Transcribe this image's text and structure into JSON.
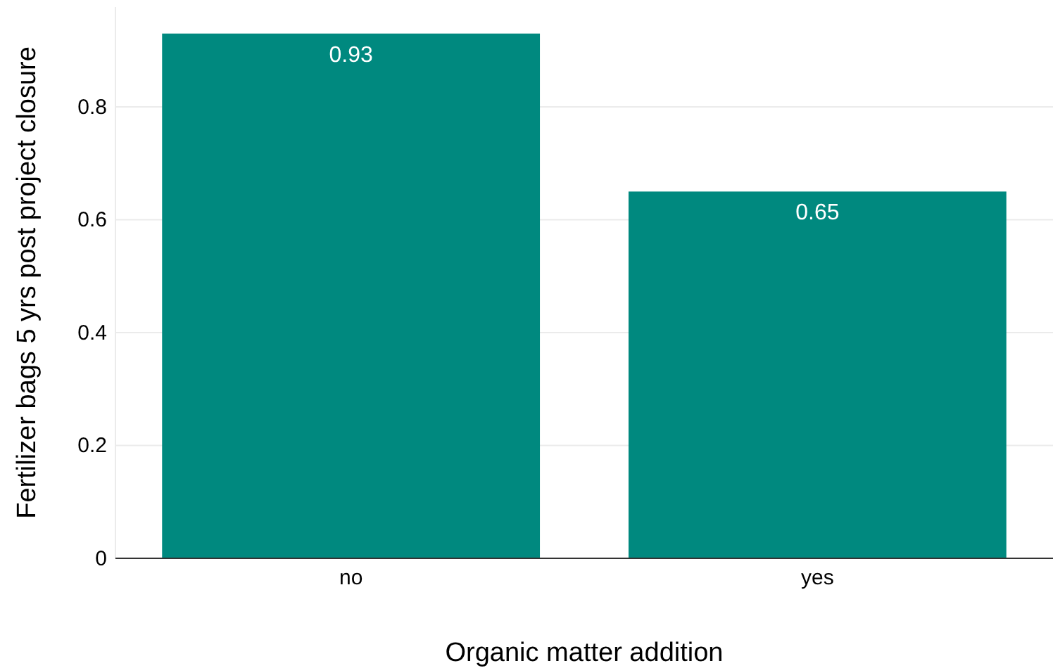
{
  "chart_data": {
    "type": "bar",
    "xlabel": "Organic matter addition",
    "ylabel": "Fertilizer bags 5 yrs post project closure",
    "categories": [
      "no",
      "yes"
    ],
    "values": [
      0.93,
      0.65
    ],
    "ylim": [
      0,
      0.977
    ],
    "color": "#00897f",
    "data_labels": true,
    "yticks": [
      0,
      0.2,
      0.4,
      0.6,
      0.8
    ],
    "grid": "y"
  }
}
